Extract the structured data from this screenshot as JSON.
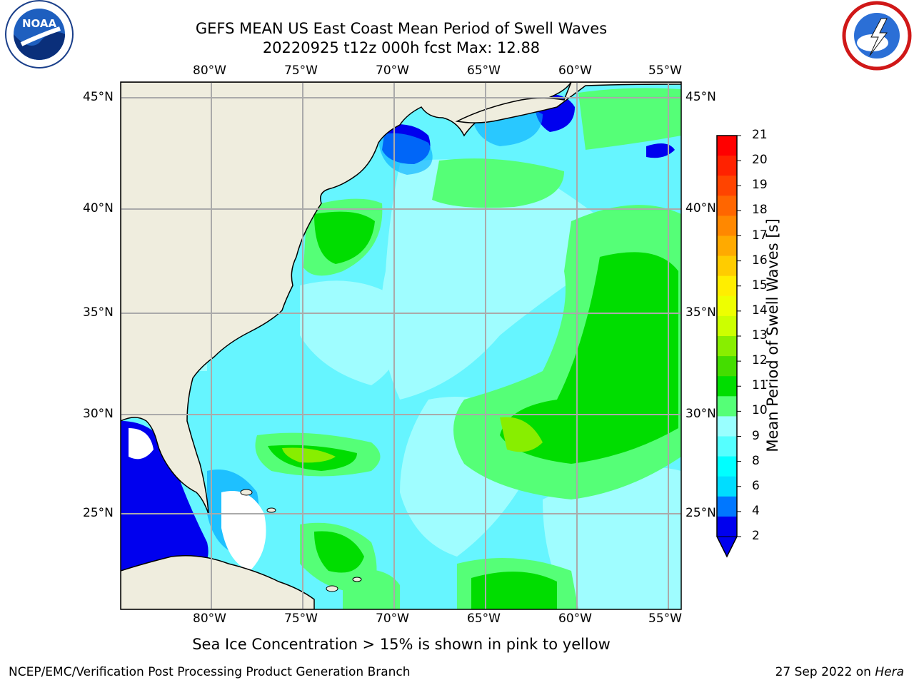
{
  "title": {
    "line1": "GEFS MEAN US East Coast Mean Period of Swell Waves",
    "line2": "20220925 t12z 000h fcst   Max: 12.88"
  },
  "logos": {
    "left": "noaa-logo",
    "right": "national-weather-service-logo",
    "noaa_text": "NOAA"
  },
  "map": {
    "lon_labels": [
      "80°W",
      "75°W",
      "70°W",
      "65°W",
      "60°W",
      "55°W"
    ],
    "lat_labels": [
      "45°N",
      "40°N",
      "35°N",
      "30°N",
      "25°N"
    ],
    "lon_range": [
      -85,
      -55
    ],
    "lat_range": [
      20.5,
      46
    ],
    "grid": true
  },
  "colorbar": {
    "label": "Mean Period of Swell Waves [s]",
    "ticks": [
      "21",
      "20",
      "19",
      "18",
      "17",
      "16",
      "15",
      "14",
      "13",
      "12",
      "11",
      "10",
      "9",
      "8",
      "6",
      "4",
      "2"
    ],
    "colors": [
      "#ff0000",
      "#ff2200",
      "#ff4400",
      "#ff6600",
      "#ff8800",
      "#ffaa00",
      "#ffcc00",
      "#ffee00",
      "#eeff00",
      "#ccff00",
      "#88ee00",
      "#44dd00",
      "#00dd00",
      "#55ff77",
      "#99ffff",
      "#55ffff",
      "#00ffff",
      "#00ddff",
      "#0077ff",
      "#0000ee"
    ]
  },
  "footnote": "Sea Ice Concentration > 15% is shown in pink to yellow",
  "credit": "NCEP/EMC/Verification Post Processing Product Generation Branch",
  "date_text": "27 Sep 2022 on",
  "date_host": "Hera"
}
